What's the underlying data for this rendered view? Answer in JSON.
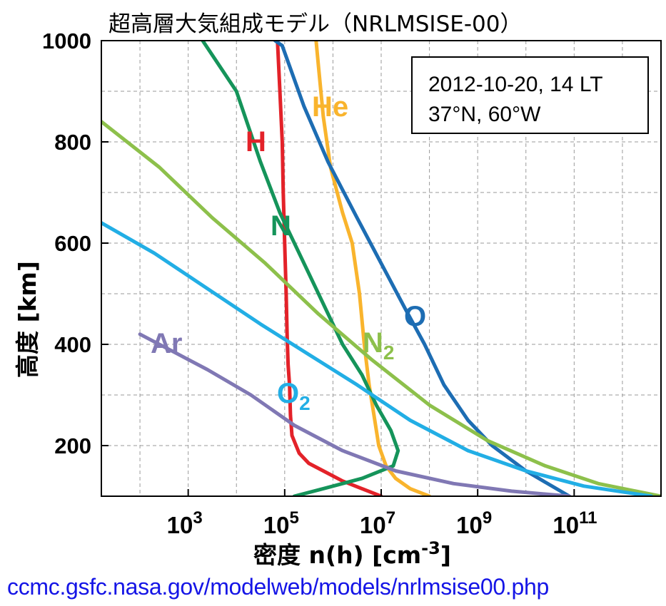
{
  "chart_data": {
    "type": "line",
    "title": "超高層大気組成モデル（NRLMSISE-00）",
    "xlabel": "密度 n(h) [cm",
    "xlabel_exp": "-3",
    "xlabel_close": "]",
    "ylabel": "高度 [km]",
    "xscale": "log",
    "xlim_log10": [
      1.2,
      12.8
    ],
    "ylim": [
      100,
      1000
    ],
    "grid": true,
    "yticks": [
      200,
      400,
      600,
      800,
      1000
    ],
    "ytick_labels": [
      "200",
      "400",
      "600",
      "800",
      "1000"
    ],
    "xticks": [
      {
        "log": 3,
        "base": "10",
        "exp": "3"
      },
      {
        "log": 5,
        "base": "10",
        "exp": "5"
      },
      {
        "log": 7,
        "base": "10",
        "exp": "7"
      },
      {
        "log": 9,
        "base": "10",
        "exp": "9"
      },
      {
        "log": 11,
        "base": "10",
        "exp": "11"
      }
    ],
    "annotation": [
      "2012-10-20, 14 LT",
      "37°N, 60°W"
    ],
    "series": [
      {
        "name": "H",
        "label": "H",
        "color": "#e32229",
        "points": [
          [
            7.0,
            100
          ],
          [
            6.6,
            115
          ],
          [
            6.2,
            130
          ],
          [
            5.8,
            150
          ],
          [
            5.5,
            165
          ],
          [
            5.3,
            185
          ],
          [
            5.15,
            220
          ],
          [
            5.12,
            260
          ],
          [
            5.1,
            320
          ],
          [
            5.07,
            360
          ],
          [
            5.05,
            420
          ],
          [
            5.03,
            500
          ],
          [
            5.0,
            600
          ],
          [
            4.97,
            700
          ],
          [
            4.95,
            800
          ],
          [
            4.9,
            900
          ],
          [
            4.85,
            1000
          ]
        ]
      },
      {
        "name": "He",
        "label": "He",
        "color": "#f9b42d",
        "points": [
          [
            8.0,
            100
          ],
          [
            7.6,
            115
          ],
          [
            7.3,
            135
          ],
          [
            7.1,
            160
          ],
          [
            6.95,
            200
          ],
          [
            6.85,
            260
          ],
          [
            6.75,
            320
          ],
          [
            6.65,
            400
          ],
          [
            6.55,
            500
          ],
          [
            6.4,
            600
          ],
          [
            6.2,
            660
          ],
          [
            5.95,
            750
          ],
          [
            5.8,
            850
          ],
          [
            5.7,
            950
          ],
          [
            5.65,
            1000
          ]
        ]
      },
      {
        "name": "N",
        "label": "N",
        "color": "#15945a",
        "points": [
          [
            5.2,
            100
          ],
          [
            5.8,
            115
          ],
          [
            6.6,
            135
          ],
          [
            7.25,
            160
          ],
          [
            7.35,
            190
          ],
          [
            7.2,
            230
          ],
          [
            6.9,
            280
          ],
          [
            6.6,
            340
          ],
          [
            6.2,
            400
          ],
          [
            5.8,
            480
          ],
          [
            5.4,
            560
          ],
          [
            4.9,
            660
          ],
          [
            4.5,
            760
          ],
          [
            4.0,
            900
          ],
          [
            3.3,
            1000
          ]
        ]
      },
      {
        "name": "O",
        "label": "O",
        "color": "#1d6db3",
        "points": [
          [
            10.9,
            100
          ],
          [
            10.0,
            150
          ],
          [
            9.3,
            200
          ],
          [
            8.8,
            250
          ],
          [
            8.3,
            320
          ],
          [
            7.9,
            400
          ],
          [
            7.5,
            470
          ],
          [
            7.0,
            560
          ],
          [
            6.5,
            650
          ],
          [
            5.9,
            760
          ],
          [
            5.4,
            870
          ],
          [
            4.95,
            990
          ],
          [
            4.8,
            1000
          ]
        ]
      },
      {
        "name": "N2",
        "label": "N",
        "sub": "2",
        "color": "#8dc04b",
        "points": [
          [
            12.8,
            100
          ],
          [
            11.5,
            125
          ],
          [
            10.4,
            160
          ],
          [
            9.2,
            210
          ],
          [
            8.0,
            280
          ],
          [
            6.8,
            370
          ],
          [
            5.7,
            460
          ],
          [
            4.6,
            560
          ],
          [
            3.5,
            650
          ],
          [
            2.4,
            750
          ],
          [
            1.2,
            840
          ]
        ]
      },
      {
        "name": "O2",
        "label": "O",
        "sub": "2",
        "color": "#22aee5",
        "points": [
          [
            12.6,
            100
          ],
          [
            11.2,
            120
          ],
          [
            10.0,
            150
          ],
          [
            8.8,
            190
          ],
          [
            7.6,
            250
          ],
          [
            6.5,
            320
          ],
          [
            5.5,
            380
          ],
          [
            4.5,
            440
          ],
          [
            3.4,
            510
          ],
          [
            2.3,
            580
          ],
          [
            1.2,
            640
          ]
        ]
      },
      {
        "name": "Ar",
        "label": "Ar",
        "color": "#8078b4",
        "points": [
          [
            10.9,
            100
          ],
          [
            9.7,
            110
          ],
          [
            8.5,
            125
          ],
          [
            7.3,
            150
          ],
          [
            6.2,
            190
          ],
          [
            5.2,
            240
          ],
          [
            4.3,
            300
          ],
          [
            3.4,
            350
          ],
          [
            2.7,
            385
          ],
          [
            2.0,
            420
          ]
        ]
      }
    ]
  },
  "source_url": "ccmc.gsfc.nasa.gov/modelweb/models/nrlmsise00.php"
}
